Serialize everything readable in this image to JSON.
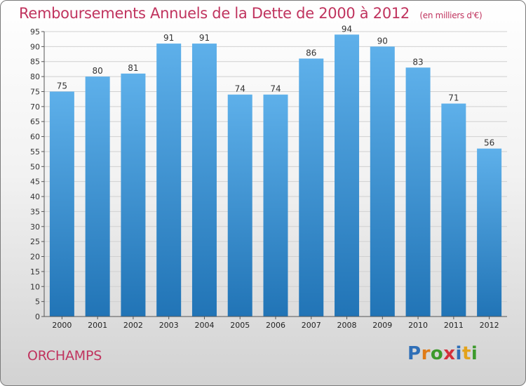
{
  "header": {
    "title": "Remboursements Annuels de la Dette de 2000 à 2012",
    "unit": "(en milliers d'€)"
  },
  "footer": {
    "commune": "ORCHAMPS",
    "logo": [
      "P",
      "r",
      "o",
      "x",
      "i",
      "t",
      "i"
    ]
  },
  "colors": {
    "title": "#c0335e",
    "bar_top": "#5eb0ea",
    "bar_bottom": "#2174b6",
    "grid": "#d0d0d0"
  },
  "chart_data": {
    "type": "bar",
    "title": "Remboursements Annuels de la Dette de 2000 à 2012",
    "xlabel": "",
    "ylabel": "",
    "ylim": [
      0,
      95
    ],
    "ytick_step": 5,
    "grid": true,
    "categories": [
      "2000",
      "2001",
      "2002",
      "2003",
      "2004",
      "2005",
      "2006",
      "2007",
      "2008",
      "2009",
      "2010",
      "2011",
      "2012"
    ],
    "values": [
      75,
      80,
      81,
      91,
      91,
      74,
      74,
      86,
      94,
      90,
      83,
      71,
      56
    ]
  }
}
